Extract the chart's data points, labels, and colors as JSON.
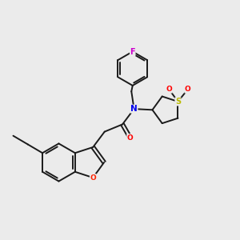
{
  "background_color": "#ebebeb",
  "bond_color": "#1a1a1a",
  "figsize": [
    3.0,
    3.0
  ],
  "dpi": 100,
  "atom_colors": {
    "N": "#0000ee",
    "O_carbonyl": "#ff0000",
    "O_furan": "#ff2200",
    "S": "#bbbb00",
    "O_sulfone": "#ff0000",
    "F": "#cc00cc"
  },
  "xlim": [
    0,
    10
  ],
  "ylim": [
    0,
    10
  ]
}
